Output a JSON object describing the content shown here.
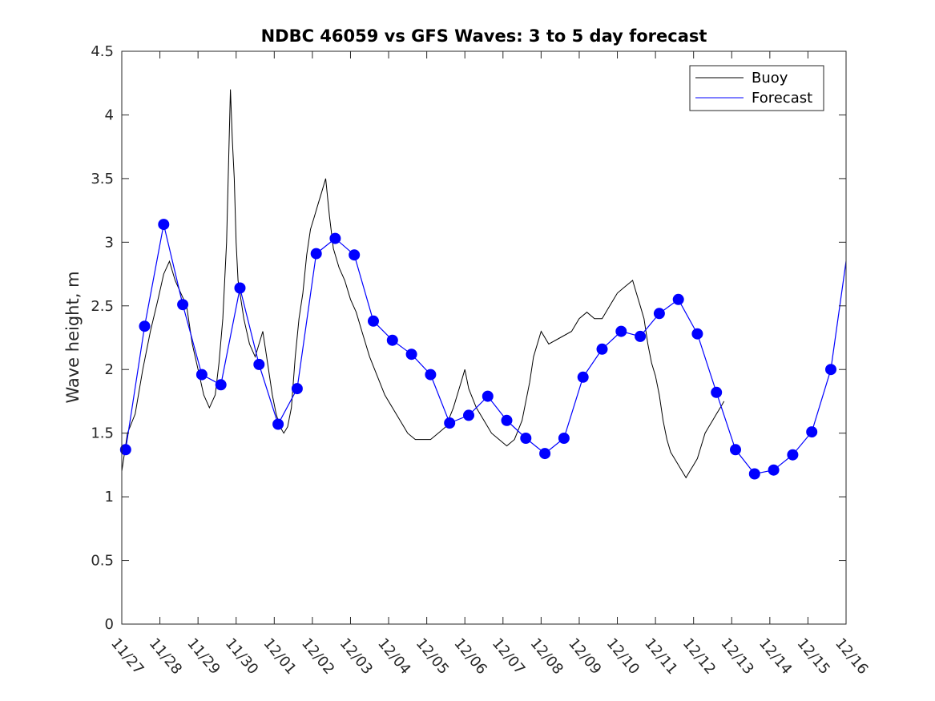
{
  "chart_data": {
    "type": "line",
    "title": "NDBC 46059 vs GFS Waves: 3 to 5 day forecast",
    "xlabel": "",
    "ylabel": "Wave height, m",
    "ylim": [
      0,
      4.5
    ],
    "xlim": [
      0,
      19
    ],
    "yticks": [
      "0",
      "0.5",
      "1",
      "1.5",
      "2",
      "2.5",
      "3",
      "3.5",
      "4",
      "4.5"
    ],
    "ytick_values": [
      0,
      0.5,
      1,
      1.5,
      2,
      2.5,
      3,
      3.5,
      4,
      4.5
    ],
    "xticks": [
      "11/27",
      "11/28",
      "11/29",
      "11/30",
      "12/01",
      "12/02",
      "12/03",
      "12/04",
      "12/05",
      "12/06",
      "12/07",
      "12/08",
      "12/09",
      "12/10",
      "12/11",
      "12/12",
      "12/13",
      "12/14",
      "12/15",
      "12/16"
    ],
    "legend": {
      "location": "top-right",
      "entries": [
        {
          "label": "Buoy",
          "color": "#000000"
        },
        {
          "label": "Forecast",
          "color": "#0000ff"
        }
      ]
    },
    "series": [
      {
        "name": "Buoy",
        "color": "#000000",
        "points": [
          [
            0,
            1.2
          ],
          [
            0.15,
            1.5
          ],
          [
            0.35,
            1.65
          ],
          [
            0.55,
            2.0
          ],
          [
            0.75,
            2.3
          ],
          [
            0.95,
            2.55
          ],
          [
            1.1,
            2.75
          ],
          [
            1.25,
            2.85
          ],
          [
            1.4,
            2.7
          ],
          [
            1.55,
            2.6
          ],
          [
            1.7,
            2.5
          ],
          [
            1.85,
            2.2
          ],
          [
            2.0,
            2.0
          ],
          [
            2.15,
            1.8
          ],
          [
            2.3,
            1.7
          ],
          [
            2.45,
            1.8
          ],
          [
            2.55,
            2.05
          ],
          [
            2.65,
            2.4
          ],
          [
            2.75,
            3.0
          ],
          [
            2.8,
            3.6
          ],
          [
            2.85,
            4.2
          ],
          [
            2.9,
            3.8
          ],
          [
            2.95,
            3.5
          ],
          [
            3.0,
            3.0
          ],
          [
            3.05,
            2.7
          ],
          [
            3.1,
            2.6
          ],
          [
            3.2,
            2.4
          ],
          [
            3.35,
            2.2
          ],
          [
            3.5,
            2.1
          ],
          [
            3.6,
            2.2
          ],
          [
            3.7,
            2.3
          ],
          [
            3.8,
            2.1
          ],
          [
            3.95,
            1.8
          ],
          [
            4.05,
            1.65
          ],
          [
            4.15,
            1.55
          ],
          [
            4.25,
            1.5
          ],
          [
            4.35,
            1.55
          ],
          [
            4.45,
            1.7
          ],
          [
            4.55,
            2.1
          ],
          [
            4.65,
            2.4
          ],
          [
            4.75,
            2.6
          ],
          [
            4.85,
            2.9
          ],
          [
            4.95,
            3.1
          ],
          [
            5.05,
            3.2
          ],
          [
            5.15,
            3.3
          ],
          [
            5.25,
            3.4
          ],
          [
            5.35,
            3.5
          ],
          [
            5.45,
            3.2
          ],
          [
            5.55,
            2.95
          ],
          [
            5.7,
            2.8
          ],
          [
            5.85,
            2.7
          ],
          [
            6.0,
            2.55
          ],
          [
            6.15,
            2.45
          ],
          [
            6.3,
            2.3
          ],
          [
            6.5,
            2.1
          ],
          [
            6.7,
            1.95
          ],
          [
            6.9,
            1.8
          ],
          [
            7.1,
            1.7
          ],
          [
            7.3,
            1.6
          ],
          [
            7.5,
            1.5
          ],
          [
            7.7,
            1.45
          ],
          [
            7.9,
            1.45
          ],
          [
            8.1,
            1.45
          ],
          [
            8.3,
            1.5
          ],
          [
            8.5,
            1.55
          ],
          [
            8.7,
            1.7
          ],
          [
            8.9,
            1.9
          ],
          [
            9.0,
            2.0
          ],
          [
            9.1,
            1.85
          ],
          [
            9.3,
            1.7
          ],
          [
            9.5,
            1.6
          ],
          [
            9.7,
            1.5
          ],
          [
            9.9,
            1.45
          ],
          [
            10.1,
            1.4
          ],
          [
            10.3,
            1.45
          ],
          [
            10.5,
            1.6
          ],
          [
            10.7,
            1.9
          ],
          [
            10.8,
            2.1
          ],
          [
            11.0,
            2.3
          ],
          [
            11.2,
            2.2
          ],
          [
            11.5,
            2.25
          ],
          [
            11.8,
            2.3
          ],
          [
            12.0,
            2.4
          ],
          [
            12.2,
            2.45
          ],
          [
            12.4,
            2.4
          ],
          [
            12.6,
            2.4
          ],
          [
            12.8,
            2.5
          ],
          [
            13.0,
            2.6
          ],
          [
            13.2,
            2.65
          ],
          [
            13.4,
            2.7
          ],
          [
            13.5,
            2.6
          ],
          [
            13.6,
            2.5
          ],
          [
            13.7,
            2.4
          ],
          [
            13.8,
            2.2
          ],
          [
            13.9,
            2.05
          ],
          [
            14.0,
            1.95
          ],
          [
            14.1,
            1.8
          ],
          [
            14.2,
            1.6
          ],
          [
            14.3,
            1.45
          ],
          [
            14.4,
            1.35
          ],
          [
            14.5,
            1.3
          ],
          [
            14.6,
            1.25
          ],
          [
            14.7,
            1.2
          ],
          [
            14.8,
            1.15
          ],
          [
            14.9,
            1.2
          ],
          [
            15.0,
            1.25
          ],
          [
            15.1,
            1.3
          ],
          [
            15.2,
            1.4
          ],
          [
            15.3,
            1.5
          ],
          [
            15.4,
            1.55
          ],
          [
            15.5,
            1.6
          ],
          [
            15.6,
            1.65
          ],
          [
            15.7,
            1.7
          ],
          [
            15.8,
            1.75
          ]
        ]
      },
      {
        "name": "Forecast",
        "color": "#0000ff",
        "points": [
          [
            0.1,
            1.37
          ],
          [
            0.6,
            2.34
          ],
          [
            1.1,
            3.14
          ],
          [
            1.6,
            2.51
          ],
          [
            2.1,
            1.96
          ],
          [
            2.6,
            1.88
          ],
          [
            3.1,
            2.64
          ],
          [
            3.6,
            2.04
          ],
          [
            4.1,
            1.57
          ],
          [
            4.6,
            1.85
          ],
          [
            5.1,
            2.91
          ],
          [
            5.6,
            3.03
          ],
          [
            6.1,
            2.9
          ],
          [
            6.6,
            2.38
          ],
          [
            7.1,
            2.23
          ],
          [
            7.6,
            2.12
          ],
          [
            8.1,
            1.96
          ],
          [
            8.6,
            1.58
          ],
          [
            9.1,
            1.64
          ],
          [
            9.6,
            1.79
          ],
          [
            10.1,
            1.6
          ],
          [
            10.6,
            1.46
          ],
          [
            11.1,
            1.34
          ],
          [
            11.6,
            1.46
          ],
          [
            12.1,
            1.94
          ],
          [
            12.6,
            2.16
          ],
          [
            13.1,
            2.3
          ],
          [
            13.6,
            2.26
          ],
          [
            14.1,
            2.44
          ],
          [
            14.6,
            2.55
          ],
          [
            15.1,
            2.28
          ],
          [
            15.6,
            1.82
          ],
          [
            16.1,
            1.37
          ],
          [
            16.6,
            1.18
          ],
          [
            17.1,
            1.21
          ],
          [
            17.6,
            1.33
          ],
          [
            18.1,
            1.51
          ],
          [
            18.6,
            2.0
          ],
          [
            19.0,
            2.85
          ]
        ]
      }
    ]
  }
}
